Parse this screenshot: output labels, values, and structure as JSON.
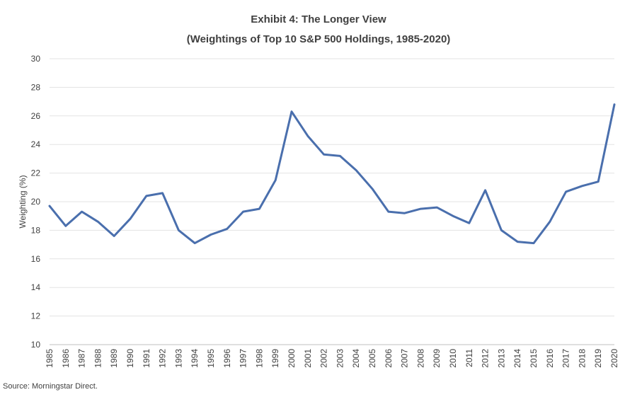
{
  "chart_data": {
    "type": "line",
    "title": "Exhibit 4: The Longer View",
    "subtitle": "(Weightings of Top 10 S&P 500 Holdings, 1985-2020)",
    "xlabel": "",
    "ylabel": "Weighting (%)",
    "ylim": [
      10,
      30
    ],
    "yticks": [
      10,
      12,
      14,
      16,
      18,
      20,
      22,
      24,
      26,
      28,
      30
    ],
    "grid": true,
    "legend": "none",
    "color": "#4a6fad",
    "x": [
      "1985",
      "1986",
      "1987",
      "1988",
      "1989",
      "1990",
      "1991",
      "1992",
      "1993",
      "1994",
      "1995",
      "1996",
      "1997",
      "1998",
      "1999",
      "2000",
      "2001",
      "2002",
      "2003",
      "2004",
      "2005",
      "2006",
      "2007",
      "2008",
      "2009",
      "2010",
      "2011",
      "2012",
      "2013",
      "2014",
      "2015",
      "2016",
      "2017",
      "2018",
      "2019",
      "2020"
    ],
    "series": [
      {
        "values": [
          19.7,
          18.3,
          19.3,
          18.6,
          17.6,
          18.8,
          20.4,
          20.6,
          18.0,
          17.1,
          17.7,
          18.1,
          19.3,
          19.5,
          21.5,
          26.3,
          24.6,
          23.3,
          23.2,
          22.2,
          20.9,
          19.3,
          19.2,
          19.5,
          19.6,
          19.0,
          18.5,
          20.8,
          18.0,
          17.2,
          17.1,
          18.6,
          20.7,
          21.1,
          21.4,
          26.8
        ]
      }
    ]
  },
  "source_note": "Source: Morningstar Direct."
}
